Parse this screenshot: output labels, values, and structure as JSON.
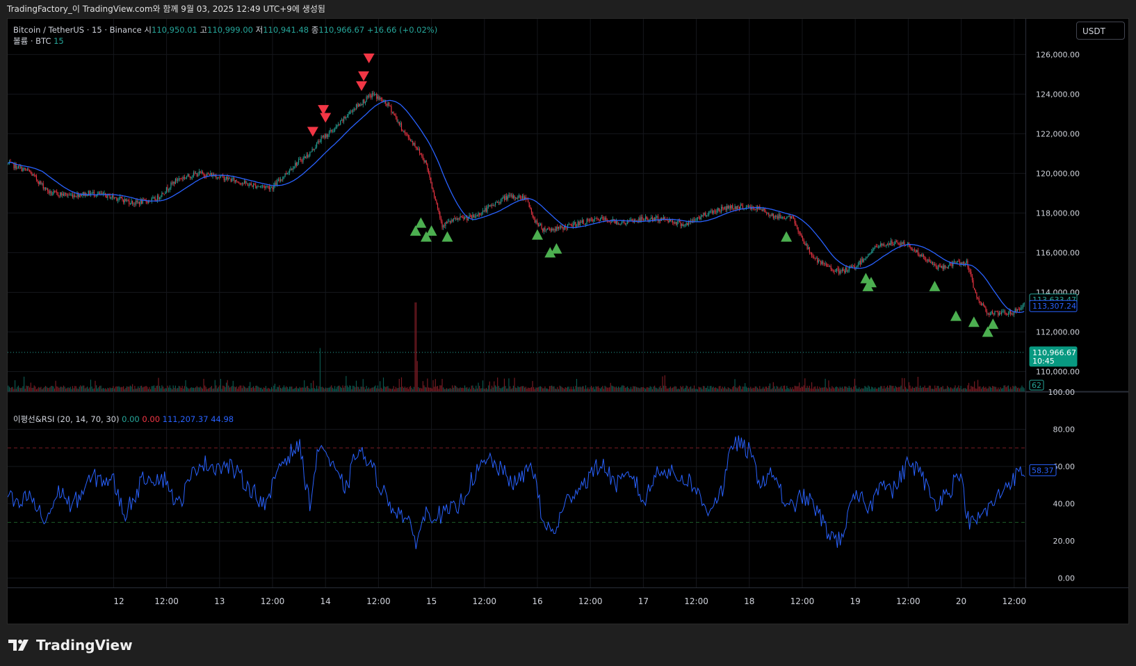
{
  "header": {
    "title": "TradingFactory_이 TradingView.com와 함께 9월 03, 2025 12:49 UTC+9에 생성됨"
  },
  "legend": {
    "symbol": "Bitcoin / TetherUS · 15 · Binance",
    "o_label": "시",
    "o_value": "110,950.01",
    "h_label": "고",
    "h_value": "110,999.00",
    "l_label": "저",
    "l_value": "110,941.48",
    "c_label": "종",
    "c_value": "110,966.67",
    "change": "+16.66 (+0.02%)",
    "volume_label": "볼륨 · BTC",
    "volume_value": "15",
    "rsi_label": "이평선&RSI (20, 14, 70, 30)",
    "rsi_v1": "0.00",
    "rsi_v2": "0.00",
    "rsi_v3": "111,207.37",
    "rsi_v4": "44.98"
  },
  "currency_button": "USDT",
  "footer": {
    "brand": "TradingView"
  },
  "colors": {
    "up": "#26a69a",
    "down": "#f23645",
    "ma": "#2962ff",
    "buy_signal": "#4caf50",
    "sell_signal": "#f23645",
    "rsi_line": "#2962ff",
    "overbought": "#f23645",
    "oversold": "#4caf50"
  },
  "chart_data": [
    {
      "type": "candlestick",
      "title": "Bitcoin / TetherUS · 15 · Binance",
      "ylim": [
        109000,
        127800
      ],
      "y_ticks": [
        "126,000.00",
        "124,000.00",
        "122,000.00",
        "120,000.00",
        "118,000.00",
        "116,000.00",
        "114,000.00",
        "112,000.00",
        "110,000.00"
      ],
      "y_tick_values": [
        126000,
        124000,
        122000,
        120000,
        118000,
        116000,
        114000,
        112000,
        110000
      ],
      "x_range_days": [
        11.0,
        20.6
      ],
      "x_ticks": [
        "12",
        "12:00",
        "13",
        "12:00",
        "14",
        "12:00",
        "15",
        "12:00",
        "16",
        "12:00",
        "17",
        "12:00",
        "18",
        "12:00",
        "19",
        "12:00",
        "20",
        "12:00"
      ],
      "x_tick_values": [
        12,
        12.5,
        13,
        13.5,
        14,
        14.5,
        15,
        15.5,
        16,
        16.5,
        17,
        17.5,
        18,
        18.5,
        19,
        19.5,
        20,
        20.5
      ],
      "price_path": {
        "x": [
          11.0,
          11.2,
          11.4,
          11.6,
          11.8,
          12.0,
          12.2,
          12.4,
          12.6,
          12.8,
          12.95,
          13.1,
          13.3,
          13.5,
          13.7,
          13.85,
          13.95,
          14.1,
          14.25,
          14.45,
          14.6,
          14.75,
          14.85,
          14.95,
          15.1,
          15.25,
          15.4,
          15.55,
          15.7,
          15.9,
          15.95,
          16.05,
          16.2,
          16.4,
          16.6,
          16.8,
          17.0,
          17.2,
          17.4,
          17.6,
          17.8,
          17.95,
          18.1,
          18.25,
          18.4,
          18.55,
          18.65,
          18.75,
          18.85,
          19.0,
          19.1,
          19.2,
          19.35,
          19.5,
          19.65,
          19.8,
          19.95,
          20.05,
          20.15,
          20.25,
          20.35,
          20.5,
          20.6
        ],
        "y": [
          120500,
          120100,
          119000,
          118900,
          119000,
          118800,
          118500,
          118700,
          119700,
          120000,
          119900,
          119700,
          119400,
          119300,
          120400,
          121000,
          121700,
          122300,
          123200,
          124000,
          123400,
          122000,
          121400,
          120500,
          117400,
          117700,
          117800,
          118300,
          118800,
          118800,
          117800,
          117200,
          117200,
          117500,
          117700,
          117500,
          117700,
          117700,
          117400,
          118000,
          118300,
          118300,
          118200,
          117800,
          117800,
          116200,
          115500,
          115300,
          115000,
          115300,
          115800,
          116300,
          116500,
          116400,
          115700,
          115200,
          115500,
          115500,
          113700,
          113000,
          112900,
          113000,
          113400
        ]
      },
      "volume": {
        "label": "볼륨 · BTC",
        "value_label": "62",
        "spikes": [
          {
            "x": 13.95,
            "value": 200
          },
          {
            "x": 14.85,
            "value": 410
          },
          {
            "x": 14.87,
            "value": 140
          }
        ]
      },
      "price_labels": [
        {
          "value": 113633.47,
          "text": "113,633.47",
          "color": "#26a69a"
        },
        {
          "value": 113307.24,
          "text": "113,307.24",
          "color": "#2962ff"
        },
        {
          "value": 110966.67,
          "text": "110,966.67",
          "sub": "10:45",
          "color": "#089981"
        }
      ],
      "sell_signals": [
        {
          "x": 13.88,
          "y": 122100
        },
        {
          "x": 13.98,
          "y": 123200
        },
        {
          "x": 14.0,
          "y": 122800
        },
        {
          "x": 14.34,
          "y": 124400
        },
        {
          "x": 14.36,
          "y": 124900
        },
        {
          "x": 14.41,
          "y": 125800
        }
      ],
      "buy_signals": [
        {
          "x": 14.85,
          "y": 117100
        },
        {
          "x": 14.9,
          "y": 117500
        },
        {
          "x": 14.95,
          "y": 116800
        },
        {
          "x": 15.0,
          "y": 117100
        },
        {
          "x": 15.15,
          "y": 116800
        },
        {
          "x": 16.0,
          "y": 116900
        },
        {
          "x": 16.12,
          "y": 116000
        },
        {
          "x": 16.18,
          "y": 116200
        },
        {
          "x": 18.35,
          "y": 116800
        },
        {
          "x": 19.1,
          "y": 114700
        },
        {
          "x": 19.12,
          "y": 114300
        },
        {
          "x": 19.15,
          "y": 114500
        },
        {
          "x": 19.75,
          "y": 114300
        },
        {
          "x": 19.95,
          "y": 112800
        },
        {
          "x": 20.12,
          "y": 112500
        },
        {
          "x": 20.25,
          "y": 112000
        },
        {
          "x": 20.3,
          "y": 112400
        }
      ]
    },
    {
      "type": "line",
      "title": "이평선&RSI (20, 14, 70, 30)",
      "ylim": [
        -5,
        100
      ],
      "y_ticks": [
        "100.00",
        "80.00",
        "60.00",
        "40.00",
        "20.00",
        "0.00"
      ],
      "y_tick_values": [
        100,
        80,
        60,
        40,
        20,
        0
      ],
      "overbought": 70,
      "oversold": 30,
      "last_value_label": "58.37",
      "series": [
        {
          "x": [
            11.0,
            11.1,
            11.2,
            11.35,
            11.5,
            11.6,
            11.8,
            12.0,
            12.1,
            12.3,
            12.5,
            12.6,
            12.8,
            13.0,
            13.1,
            13.3,
            13.45,
            13.55,
            13.75,
            13.85,
            13.95,
            14.1,
            14.2,
            14.3,
            14.45,
            14.6,
            14.75,
            14.85,
            14.95,
            15.1,
            15.25,
            15.4,
            15.55,
            15.65,
            15.8,
            15.95,
            16.05,
            16.15,
            16.3,
            16.45,
            16.6,
            16.75,
            16.9,
            17.0,
            17.15,
            17.3,
            17.45,
            17.6,
            17.75,
            17.85,
            18.0,
            18.1,
            18.25,
            18.35,
            18.5,
            18.6,
            18.75,
            18.85,
            19.0,
            19.15,
            19.25,
            19.35,
            19.5,
            19.6,
            19.75,
            19.9,
            19.98,
            20.08,
            20.2,
            20.3,
            20.45,
            20.6
          ],
          "y": [
            44,
            38,
            45,
            30,
            48,
            38,
            54,
            52,
            34,
            55,
            53,
            38,
            62,
            60,
            60,
            48,
            38,
            60,
            72,
            40,
            74,
            55,
            48,
            70,
            58,
            40,
            33,
            20,
            35,
            34,
            38,
            55,
            64,
            58,
            50,
            62,
            30,
            24,
            44,
            52,
            62,
            50,
            56,
            40,
            60,
            55,
            52,
            36,
            48,
            74,
            68,
            52,
            56,
            36,
            44,
            40,
            24,
            20,
            44,
            38,
            55,
            46,
            62,
            58,
            40,
            48,
            58,
            28,
            34,
            40,
            52,
            58
          ]
        }
      ]
    }
  ]
}
